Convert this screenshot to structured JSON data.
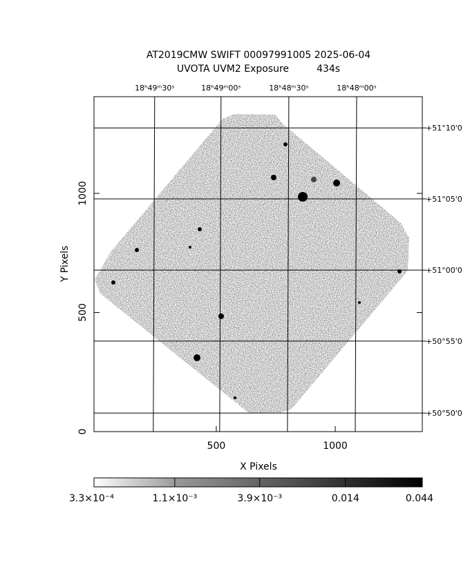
{
  "chart_data": {
    "type": "image",
    "title": "AT2019CMW SWIFT 00097991005 2025-06-04",
    "subtitle": "UVOTA UVM2 Exposure         434s",
    "xlabel": "X Pixels",
    "ylabel": "Y Pixels",
    "xlim": [
      -14,
      1366
    ],
    "ylim": [
      0,
      1406
    ],
    "xticks": [
      500,
      1000
    ],
    "yticks": [
      0,
      500,
      1000
    ],
    "top_ticks": [
      {
        "value": 241,
        "label": "18ʰ49ᵐ30ˢ"
      },
      {
        "value": 520,
        "label": "18ʰ49ᵐ00ˢ"
      },
      {
        "value": 805,
        "label": "18ʰ48ᵐ30ˢ"
      },
      {
        "value": 1090,
        "label": "18ʰ48ᵐ00ˢ"
      }
    ],
    "right_ticks": [
      {
        "value": 1275,
        "label": "+51°10'0"
      },
      {
        "value": 977,
        "label": "+51°05'0"
      },
      {
        "value": 678,
        "label": "+51°00'0"
      },
      {
        "value": 380,
        "label": "+50°55'0"
      },
      {
        "value": 78,
        "label": "+50°50'0"
      }
    ],
    "grid": true,
    "colorbar": {
      "log": true,
      "lim": [
        0.00033,
        0.044
      ],
      "ticks": [
        {
          "value": 0.00033,
          "label": "3.3×10⁻⁴"
        },
        {
          "value": 0.0011,
          "label": "1.1×10⁻³"
        },
        {
          "value": 0.0039,
          "label": "3.9×10⁻³"
        },
        {
          "value": 0.014,
          "label": "0.014"
        },
        {
          "value": 0.044,
          "label": "0.044"
        }
      ]
    }
  }
}
